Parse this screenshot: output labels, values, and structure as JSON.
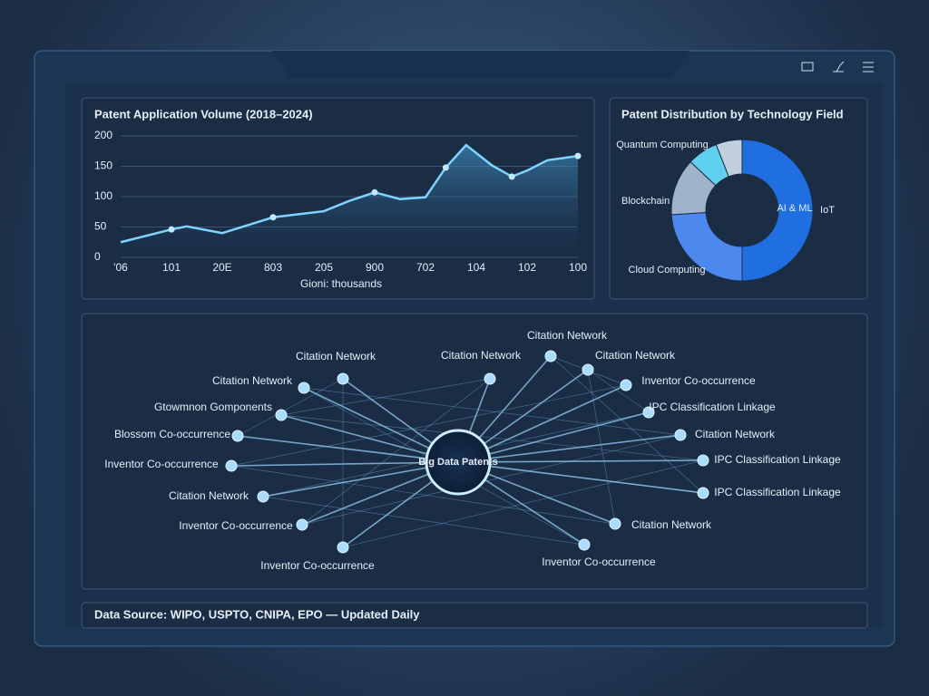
{
  "chart_data": [
    {
      "type": "line",
      "title": "Patent Application Volume (2018–2024)",
      "x_axis_label": "Gioni: thousands",
      "x": [
        0,
        1,
        1.3,
        2,
        3,
        4,
        4.5,
        5,
        5.5,
        6,
        6.4,
        6.8,
        7.3,
        7.7,
        8,
        8.4,
        9
      ],
      "values": [
        25,
        46,
        51,
        40,
        66,
        76,
        93,
        107,
        96,
        99,
        148,
        185,
        152,
        133,
        143,
        160,
        167
      ],
      "xlim": [
        0,
        9
      ],
      "xticks": [
        {
          "value": 0,
          "label": "'06"
        },
        {
          "value": 1,
          "label": "101"
        },
        {
          "value": 2,
          "label": "20E"
        },
        {
          "value": 3,
          "label": "803"
        },
        {
          "value": 4,
          "label": "205"
        },
        {
          "value": 5,
          "label": "900"
        },
        {
          "value": 6,
          "label": "702"
        },
        {
          "value": 7,
          "label": "104"
        },
        {
          "value": 8,
          "label": "102"
        },
        {
          "value": 9,
          "label": "100"
        }
      ],
      "ylim": [
        0,
        200
      ],
      "yticks": [
        0,
        50,
        100,
        150,
        200
      ],
      "color": "#7fd3ff",
      "grid": true
    },
    {
      "type": "pie",
      "title": "Patent Distribution by Technology Field",
      "donut": true,
      "categories": [
        "AI & ML",
        "Cloud Computing",
        "Blockchain",
        "Quantum Computing",
        "IoT"
      ],
      "values": [
        50,
        24,
        13,
        7,
        6
      ],
      "colors": [
        "#1f6fe0",
        "#4d88ee",
        "#9fb4cc",
        "#5fd0f0",
        "#c2cfdd"
      ]
    }
  ],
  "network": {
    "center": "Big Data Patents",
    "nodes": [
      "Citation Network",
      "Citation Network",
      "Citation Network",
      "Citation Network",
      "Citation Network",
      "Inventor Co-occurrence",
      "Gtowmnon Gomponents",
      "IPC Classification Linkage",
      "Blossom Co-occurrence",
      "Citation Network",
      "Inventor Co-occurrence",
      "IPC Classification Linkage",
      "Citation Network",
      "IPC Classification Linkage",
      "Inventor Co-occurrence",
      "Citation Network",
      "Inventor Co-occurrence",
      "Inventor Co-occurrence"
    ]
  },
  "footer": "Data Source: WIPO, USPTO, CNIPA, EPO — Updated Daily"
}
